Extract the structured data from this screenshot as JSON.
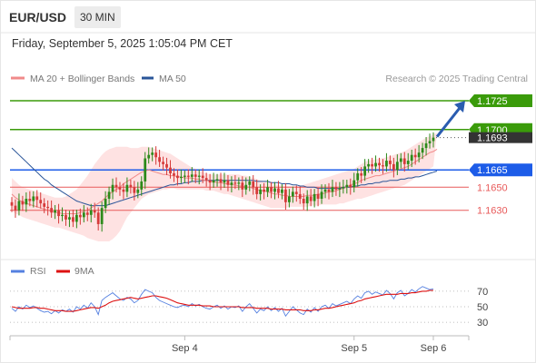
{
  "header": {
    "symbol": "EUR/USD",
    "interval": "30 MIN",
    "datetime": "Friday, September 5, 2025 1:05:04 PM CET"
  },
  "legend": {
    "ma20": "MA 20 + Bollinger Bands",
    "ma50": "MA 50",
    "source": "Research © 2025 Trading Central",
    "rsi": "RSI",
    "rsi_ma": "9MA"
  },
  "colors": {
    "resistance": "#3a9b0a",
    "pivot": "#1d5ce8",
    "support": "#e85a5a",
    "candle_up": "#2c8a1a",
    "candle_down": "#d63a3a",
    "ma20": "#f08a8a",
    "ma50": "#2a5599",
    "bands": "#fdd8d8",
    "rsi": "#5580e0",
    "rsi_ma": "#dd1111",
    "current": "#333333",
    "arrow": "#2a5cb0"
  },
  "chart_data": [
    {
      "type": "candlestick",
      "x": [],
      "xticks": [
        "Sep 4",
        "Sep 5",
        "Sep 6"
      ],
      "xtick_index": [
        48,
        95,
        117
      ],
      "ylim": [
        1.1592,
        1.1736
      ],
      "levels": [
        {
          "label": "1.1725",
          "value": 1.1725,
          "kind": "resistance"
        },
        {
          "label": "1.1700",
          "value": 1.17,
          "kind": "resistance"
        },
        {
          "label": "1.1665",
          "value": 1.1665,
          "kind": "pivot"
        },
        {
          "label": "1.1650",
          "value": 1.165,
          "kind": "support"
        },
        {
          "label": "1.1630",
          "value": 1.163,
          "kind": "support"
        }
      ],
      "current_price": {
        "label": "1.1693",
        "value": 1.1693
      },
      "arrow": {
        "from": 1.1693,
        "to": 1.1725
      },
      "closes": [
        1.1634,
        1.163,
        1.1638,
        1.1635,
        1.164,
        1.1638,
        1.1642,
        1.1639,
        1.1636,
        1.1633,
        1.1632,
        1.1628,
        1.163,
        1.1625,
        1.1626,
        1.1622,
        1.1624,
        1.162,
        1.1626,
        1.1624,
        1.1628,
        1.1626,
        1.163,
        1.1628,
        1.1618,
        1.1632,
        1.164,
        1.1646,
        1.1652,
        1.165,
        1.1648,
        1.1646,
        1.1652,
        1.165,
        1.1645,
        1.1648,
        1.1655,
        1.1675,
        1.1678,
        1.168,
        1.1676,
        1.1672,
        1.167,
        1.1667,
        1.1662,
        1.166,
        1.1658,
        1.1659,
        1.166,
        1.1659,
        1.1661,
        1.1659,
        1.166,
        1.1658,
        1.1656,
        1.1654,
        1.1656,
        1.1657,
        1.1654,
        1.1656,
        1.1652,
        1.1654,
        1.1653,
        1.1654,
        1.1648,
        1.1652,
        1.1655,
        1.165,
        1.1644,
        1.1648,
        1.1646,
        1.165,
        1.1646,
        1.1649,
        1.1645,
        1.1648,
        1.1637,
        1.1642,
        1.1646,
        1.1644,
        1.164,
        1.1636,
        1.1642,
        1.1638,
        1.1644,
        1.164,
        1.1646,
        1.1648,
        1.1646,
        1.165,
        1.1648,
        1.1649,
        1.165,
        1.1652,
        1.165,
        1.1656,
        1.1662,
        1.166,
        1.1668,
        1.167,
        1.1668,
        1.1671,
        1.1669,
        1.1668,
        1.1673,
        1.167,
        1.1665,
        1.1672,
        1.1675,
        1.167,
        1.1673,
        1.1678,
        1.1676,
        1.168,
        1.1684,
        1.1688,
        1.169,
        1.1693
      ],
      "ma20": [
        1.1644,
        1.1641,
        1.1639,
        1.1637,
        1.1636,
        1.1635,
        1.1634,
        1.1633,
        1.1632,
        1.1631,
        1.163,
        1.1629,
        1.1628,
        1.1628,
        1.1627,
        1.1627,
        1.1627,
        1.1627,
        1.1627,
        1.1628,
        1.1629,
        1.163,
        1.1632,
        1.1634,
        1.1636,
        1.1638,
        1.1641,
        1.1644,
        1.1646,
        1.1648,
        1.165,
        1.1653,
        1.1655,
        1.1657,
        1.1659,
        1.1661,
        1.1663,
        1.1664,
        1.1665,
        1.1664,
        1.1663,
        1.1662,
        1.1661,
        1.1661,
        1.166,
        1.166,
        1.1659,
        1.1659,
        1.1658,
        1.1658,
        1.1658,
        1.1657,
        1.1657,
        1.1656,
        1.1656,
        1.1655,
        1.1655,
        1.1654,
        1.1654,
        1.1653,
        1.1653,
        1.1652,
        1.1652,
        1.1651,
        1.1651,
        1.165,
        1.165,
        1.1649,
        1.1648,
        1.1647,
        1.1647,
        1.1646,
        1.1645,
        1.1644,
        1.1644,
        1.1643,
        1.1643,
        1.1642,
        1.1642,
        1.1642,
        1.1642,
        1.1642,
        1.1643,
        1.1643,
        1.1643,
        1.1644,
        1.1644,
        1.1645,
        1.1646,
        1.1646,
        1.1647,
        1.1648,
        1.1649,
        1.165,
        1.1652,
        1.1653,
        1.1654,
        1.1656,
        1.1657,
        1.1658,
        1.1659,
        1.166,
        1.166,
        1.1661,
        1.1662,
        1.1663,
        1.1664,
        1.1665,
        1.1666,
        1.1667,
        1.1668,
        1.167,
        1.1672,
        1.1674,
        1.1676,
        1.1678,
        1.168,
        1.1681,
        1.1683
      ],
      "band_upper": [
        1.1658,
        1.1655,
        1.1652,
        1.165,
        1.1649,
        1.1648,
        1.1647,
        1.1646,
        1.1645,
        1.1644,
        1.1643,
        1.1642,
        1.1641,
        1.1641,
        1.1641,
        1.1642,
        1.1644,
        1.1646,
        1.1648,
        1.1652,
        1.1656,
        1.166,
        1.1665,
        1.167,
        1.1674,
        1.1678,
        1.1681,
        1.1683,
        1.1684,
        1.1685,
        1.1685,
        1.1685,
        1.1685,
        1.1684,
        1.1684,
        1.1684,
        1.1685,
        1.1685,
        1.1685,
        1.1684,
        1.1683,
        1.1682,
        1.1681,
        1.168,
        1.1679,
        1.1677,
        1.1675,
        1.1673,
        1.1671,
        1.1669,
        1.1667,
        1.1666,
        1.1664,
        1.1663,
        1.1662,
        1.1661,
        1.1661,
        1.1661,
        1.1661,
        1.1661,
        1.1661,
        1.1661,
        1.1661,
        1.1661,
        1.166,
        1.166,
        1.1659,
        1.1658,
        1.1657,
        1.1656,
        1.1655,
        1.1654,
        1.1654,
        1.1653,
        1.1652,
        1.1652,
        1.1651,
        1.1651,
        1.1651,
        1.1651,
        1.1651,
        1.1652,
        1.1653,
        1.1654,
        1.1655,
        1.1656,
        1.1657,
        1.1658,
        1.1659,
        1.166,
        1.1661,
        1.1662,
        1.1663,
        1.1664,
        1.1665,
        1.1666,
        1.1668,
        1.167,
        1.1672,
        1.1673,
        1.1674,
        1.1674,
        1.1675,
        1.1675,
        1.1676,
        1.1677,
        1.1678,
        1.1679,
        1.168,
        1.1681,
        1.1683,
        1.1685,
        1.1687,
        1.1689,
        1.1691,
        1.1693,
        1.1694,
        1.1696,
        1.1697
      ],
      "band_lower": [
        1.163,
        1.1627,
        1.1626,
        1.1624,
        1.1623,
        1.1622,
        1.1621,
        1.162,
        1.1619,
        1.1618,
        1.1617,
        1.1616,
        1.1615,
        1.1615,
        1.1614,
        1.1613,
        1.1612,
        1.1611,
        1.161,
        1.1609,
        1.1608,
        1.1606,
        1.1605,
        1.1604,
        1.1603,
        1.1603,
        1.1603,
        1.1603,
        1.1605,
        1.1608,
        1.1612,
        1.1618,
        1.1624,
        1.1628,
        1.1632,
        1.1636,
        1.164,
        1.1642,
        1.1644,
        1.1645,
        1.1646,
        1.1647,
        1.1648,
        1.1648,
        1.1649,
        1.1649,
        1.1648,
        1.1648,
        1.1648,
        1.1648,
        1.1648,
        1.1648,
        1.1648,
        1.1648,
        1.1647,
        1.1647,
        1.1647,
        1.1646,
        1.1645,
        1.1644,
        1.1644,
        1.1643,
        1.1642,
        1.1641,
        1.164,
        1.1639,
        1.1638,
        1.1637,
        1.1636,
        1.1635,
        1.1634,
        1.1633,
        1.1632,
        1.1632,
        1.1632,
        1.1632,
        1.1632,
        1.1633,
        1.1633,
        1.1633,
        1.1633,
        1.1633,
        1.1633,
        1.1634,
        1.1634,
        1.1634,
        1.1635,
        1.1635,
        1.1635,
        1.1635,
        1.1635,
        1.1636,
        1.1636,
        1.1637,
        1.1638,
        1.1639,
        1.164,
        1.164,
        1.1641,
        1.1642,
        1.1643,
        1.1644,
        1.1645,
        1.1646,
        1.1647,
        1.1648,
        1.1649,
        1.165,
        1.1651,
        1.1652,
        1.1654,
        1.1656,
        1.1658,
        1.166,
        1.1662,
        1.1664,
        1.1666,
        1.1668,
        1.1669
      ],
      "ma50": [
        1.1684,
        1.1681,
        1.1678,
        1.1675,
        1.1672,
        1.1669,
        1.1666,
        1.1663,
        1.166,
        1.1657,
        1.1655,
        1.1652,
        1.165,
        1.1648,
        1.1646,
        1.1644,
        1.1642,
        1.164,
        1.1638,
        1.1637,
        1.1636,
        1.1635,
        1.1634,
        1.1634,
        1.1634,
        1.1634,
        1.1634,
        1.1635,
        1.1636,
        1.1637,
        1.1638,
        1.1639,
        1.164,
        1.1641,
        1.1642,
        1.1643,
        1.1644,
        1.1645,
        1.1646,
        1.1647,
        1.1648,
        1.1649,
        1.165,
        1.1651,
        1.1652,
        1.1652,
        1.1653,
        1.1653,
        1.1654,
        1.1654,
        1.1655,
        1.1655,
        1.1655,
        1.1656,
        1.1656,
        1.1656,
        1.1656,
        1.1656,
        1.1656,
        1.1656,
        1.1656,
        1.1656,
        1.1656,
        1.1656,
        1.1656,
        1.1656,
        1.1656,
        1.1656,
        1.1655,
        1.1655,
        1.1655,
        1.1655,
        1.1654,
        1.1654,
        1.1654,
        1.1653,
        1.1653,
        1.1653,
        1.1652,
        1.1652,
        1.1651,
        1.1651,
        1.165,
        1.165,
        1.165,
        1.1649,
        1.1649,
        1.1649,
        1.1649,
        1.1649,
        1.1649,
        1.1649,
        1.165,
        1.165,
        1.165,
        1.1651,
        1.1651,
        1.1652,
        1.1652,
        1.1653,
        1.1653,
        1.1654,
        1.1654,
        1.1655,
        1.1655,
        1.1656,
        1.1656,
        1.1656,
        1.1657,
        1.1657,
        1.1658,
        1.1658,
        1.1659,
        1.1659,
        1.166,
        1.1661,
        1.1662,
        1.1663,
        1.1664
      ]
    },
    {
      "type": "line",
      "yticks": [
        70,
        50,
        30
      ],
      "ylim": [
        15,
        85
      ],
      "series": [
        {
          "name": "RSI",
          "values": [
            48,
            44,
            50,
            47,
            52,
            49,
            51,
            48,
            45,
            43,
            44,
            41,
            45,
            42,
            46,
            44,
            47,
            43,
            50,
            47,
            52,
            48,
            55,
            50,
            40,
            58,
            62,
            65,
            68,
            64,
            60,
            58,
            62,
            60,
            55,
            58,
            66,
            72,
            70,
            68,
            62,
            58,
            56,
            54,
            52,
            50,
            49,
            51,
            52,
            50,
            54,
            51,
            53,
            50,
            48,
            47,
            50,
            52,
            48,
            51,
            47,
            50,
            49,
            51,
            44,
            50,
            54,
            48,
            42,
            47,
            45,
            50,
            45,
            49,
            44,
            48,
            38,
            44,
            50,
            46,
            42,
            40,
            47,
            43,
            49,
            44,
            50,
            52,
            48,
            54,
            51,
            53,
            55,
            57,
            54,
            60,
            64,
            61,
            68,
            70,
            66,
            69,
            67,
            65,
            71,
            67,
            60,
            68,
            71,
            64,
            67,
            72,
            69,
            73,
            76,
            74,
            72,
            73
          ]
        },
        {
          "name": "9MA",
          "values": [
            50,
            49,
            48,
            48,
            48,
            48,
            49,
            49,
            48,
            48,
            47,
            46,
            45,
            45,
            45,
            44,
            44,
            44,
            45,
            46,
            47,
            48,
            49,
            49,
            48,
            50,
            52,
            55,
            57,
            58,
            59,
            60,
            61,
            62,
            61,
            60,
            61,
            62,
            63,
            64,
            64,
            63,
            62,
            61,
            59,
            57,
            55,
            54,
            53,
            52,
            52,
            52,
            52,
            51,
            51,
            51,
            50,
            50,
            50,
            50,
            50,
            50,
            50,
            50,
            49,
            49,
            49,
            49,
            48,
            48,
            48,
            48,
            47,
            47,
            47,
            47,
            46,
            46,
            46,
            46,
            46,
            45,
            45,
            45,
            46,
            46,
            47,
            48,
            48,
            49,
            50,
            51,
            52,
            53,
            54,
            55,
            57,
            58,
            60,
            61,
            62,
            63,
            64,
            65,
            66,
            66,
            66,
            66,
            67,
            67,
            67,
            68,
            68,
            69,
            70,
            70,
            71,
            71
          ]
        }
      ]
    }
  ]
}
